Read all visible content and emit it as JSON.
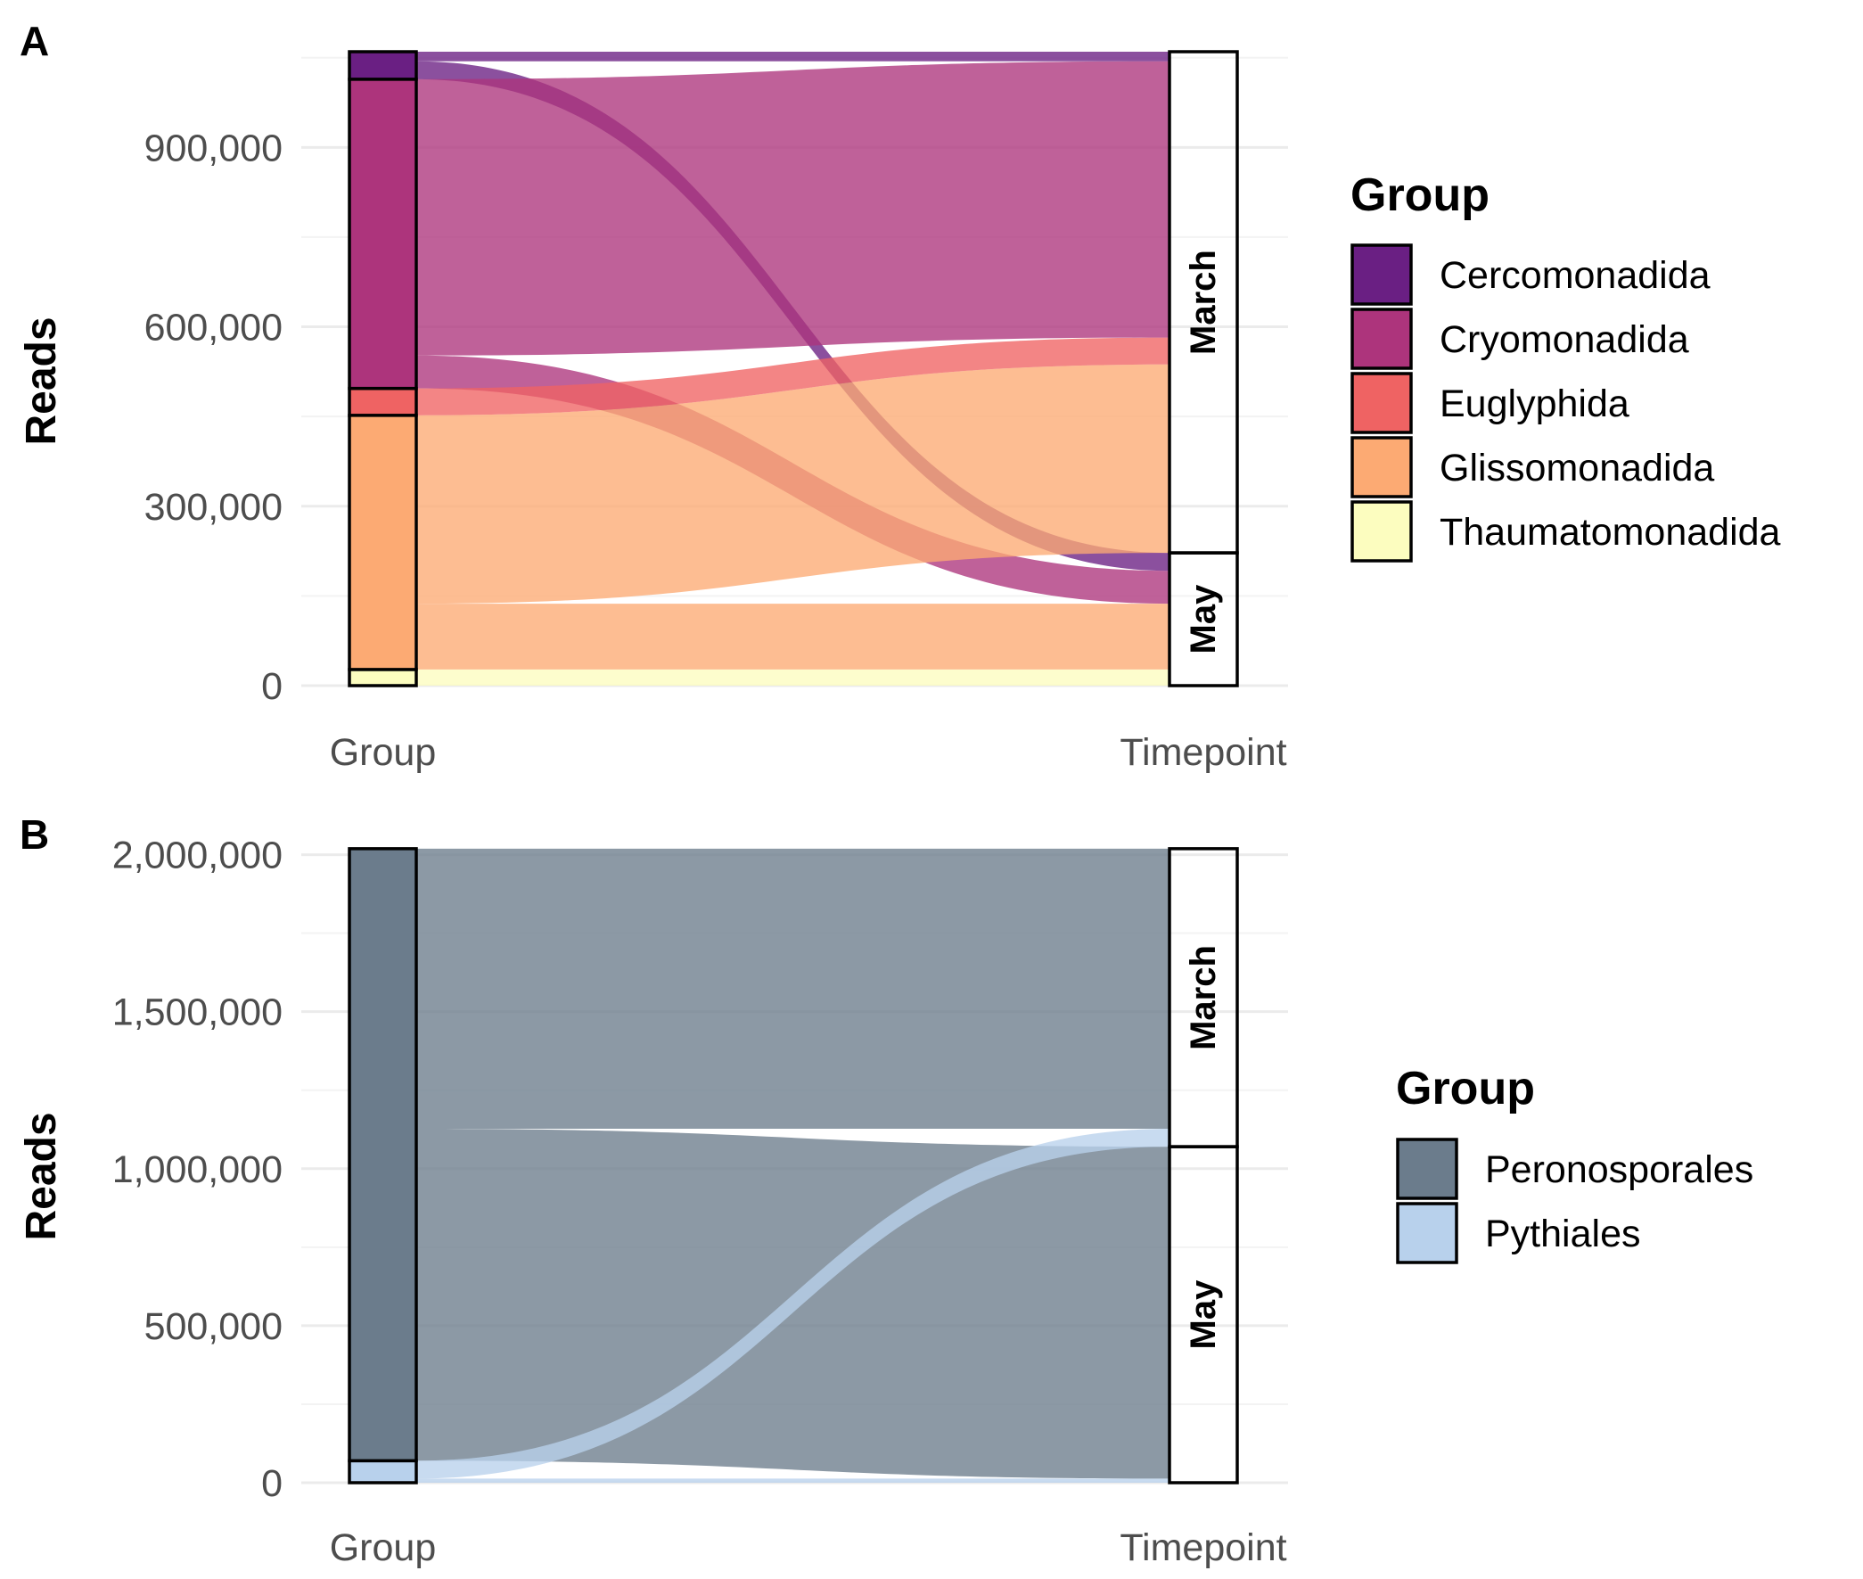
{
  "chart_data": [
    {
      "panel": "A",
      "type": "alluvial",
      "ylabel": "Reads",
      "x_axes": [
        "Group",
        "Timepoint"
      ],
      "ylim": [
        0,
        1060000
      ],
      "yticks": [
        0,
        300000,
        600000,
        900000
      ],
      "ytick_labels": [
        "0",
        "300,000",
        "600,000",
        "900,000"
      ],
      "grid": true,
      "legend": {
        "title": "Group",
        "position": "right",
        "items": [
          {
            "label": "Cercomonadida",
            "color": "#6a1f83"
          },
          {
            "label": "Cryomonadida",
            "color": "#ad347c"
          },
          {
            "label": "Euglyphida",
            "color": "#ef6363"
          },
          {
            "label": "Glissomonadida",
            "color": "#fcaa73"
          },
          {
            "label": "Thaumatomonadida",
            "color": "#fcfdbf"
          }
        ]
      },
      "timepoint_strata": [
        "May",
        "March"
      ],
      "flows": [
        {
          "group": "Thaumatomonadida",
          "timepoint": "May",
          "value": 27000
        },
        {
          "group": "Glissomonadida",
          "timepoint": "May",
          "value": 110000
        },
        {
          "group": "Cryomonadida",
          "timepoint": "May",
          "value": 55000
        },
        {
          "group": "Cercomonadida",
          "timepoint": "May",
          "value": 30000
        },
        {
          "group": "Glissomonadida",
          "timepoint": "March",
          "value": 315000
        },
        {
          "group": "Euglyphida",
          "timepoint": "March",
          "value": 45000
        },
        {
          "group": "Cryomonadida",
          "timepoint": "March",
          "value": 462000
        },
        {
          "group": "Cercomonadida",
          "timepoint": "March",
          "value": 16000
        }
      ]
    },
    {
      "panel": "B",
      "type": "alluvial",
      "ylabel": "Reads",
      "x_axes": [
        "Group",
        "Timepoint"
      ],
      "ylim": [
        0,
        2030000
      ],
      "yticks": [
        0,
        500000,
        1000000,
        1500000,
        2000000
      ],
      "ytick_labels": [
        "0",
        "500,000",
        "1,000,000",
        "1,500,000",
        "2,000,000"
      ],
      "grid": true,
      "legend": {
        "title": "Group",
        "position": "right",
        "items": [
          {
            "label": "Peronosporales",
            "color": "#6b7c8c"
          },
          {
            "label": "Pythiales",
            "color": "#b8d1ec"
          }
        ]
      },
      "timepoint_strata": [
        "May",
        "March"
      ],
      "flows": [
        {
          "group": "Pythiales",
          "timepoint": "May",
          "value": 13000
        },
        {
          "group": "Peronosporales",
          "timepoint": "May",
          "value": 1057000
        },
        {
          "group": "Pythiales",
          "timepoint": "March",
          "value": 57000
        },
        {
          "group": "Peronosporales",
          "timepoint": "March",
          "value": 892000
        }
      ]
    }
  ]
}
